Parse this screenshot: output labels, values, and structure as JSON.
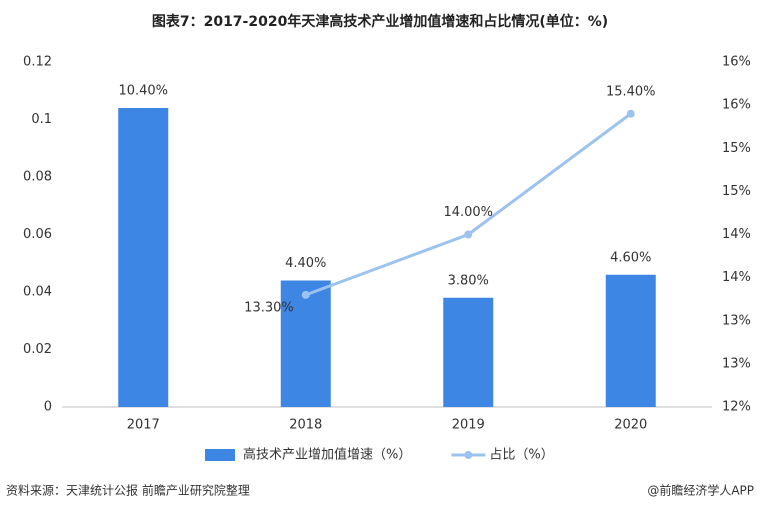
{
  "chart_data": {
    "type": "bar",
    "title": "图表7：2017-2020年天津高技术产业增加值增速和占比情况(单位：%)",
    "categories": [
      "2017",
      "2018",
      "2019",
      "2020"
    ],
    "series": [
      {
        "name": "高技术产业增加值增速（%）",
        "type": "bar",
        "color": "#3e86e3",
        "values": [
          0.104,
          0.044,
          0.038,
          0.046
        ],
        "value_labels": [
          "10.40%",
          "4.40%",
          "3.80%",
          "4.60%"
        ]
      },
      {
        "name": "占比（%）",
        "type": "line",
        "axis": "y2",
        "color": "#9cc2ef",
        "values": [
          null,
          13.3,
          14.0,
          15.4
        ],
        "value_labels": [
          null,
          "13.30%",
          "14.00%",
          "15.40%"
        ]
      }
    ],
    "ylim": [
      0,
      0.12
    ],
    "yticks": [
      0,
      0.02,
      0.04,
      0.06,
      0.08,
      0.1,
      0.12
    ],
    "y2lim": [
      12,
      16
    ],
    "y2ticks": [
      {
        "value": 12,
        "label": "12%"
      },
      {
        "value": 12.5,
        "label": "13%"
      },
      {
        "value": 13,
        "label": "13%"
      },
      {
        "value": 13.5,
        "label": "14%"
      },
      {
        "value": 14,
        "label": "14%"
      },
      {
        "value": 14.5,
        "label": "15%"
      },
      {
        "value": 15,
        "label": "15%"
      },
      {
        "value": 15.5,
        "label": "16%"
      },
      {
        "value": 16,
        "label": "16%"
      }
    ],
    "legend": "bottom",
    "source": "资料来源：天津统计公报 前瞻产业研究院整理",
    "credit": "@前瞻经济学人APP"
  }
}
